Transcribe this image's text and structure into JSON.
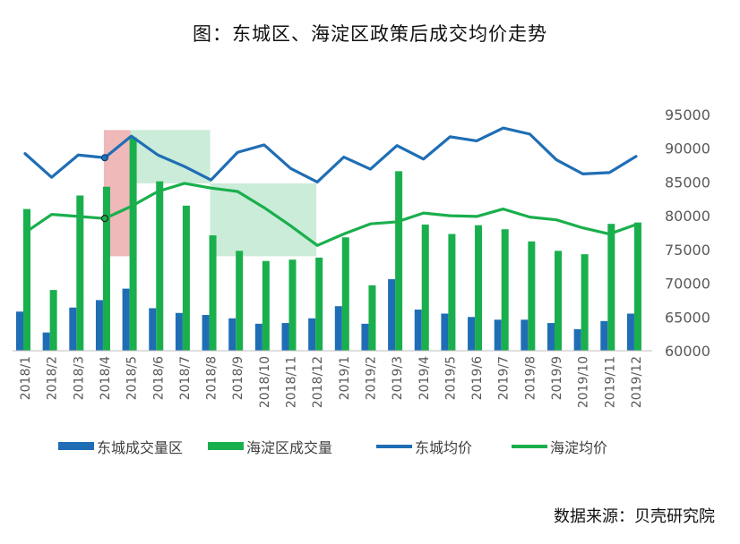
{
  "title": "图：东城区、海淀区政策后成交均价走势",
  "source": "数据来源：贝壳研究院",
  "chart_data": {
    "type": "bar",
    "categories": [
      "2018/1",
      "2018/2",
      "2018/3",
      "2018/4",
      "2018/5",
      "2018/6",
      "2018/7",
      "2018/8",
      "2018/9",
      "2018/10",
      "2018/11",
      "2018/12",
      "2019/1",
      "2019/2",
      "2019/3",
      "2019/4",
      "2019/5",
      "2019/6",
      "2019/7",
      "2019/8",
      "2019/9",
      "2019/10",
      "2019/11",
      "2019/12"
    ],
    "ylim": [
      60000,
      95000
    ],
    "yticks": [
      60000,
      65000,
      70000,
      75000,
      80000,
      85000,
      90000,
      95000
    ],
    "series": [
      {
        "name": "东城成交量区",
        "kind": "bar",
        "color": "#1F6EB5",
        "values": [
          65800,
          62700,
          66400,
          67500,
          69200,
          66300,
          65600,
          65300,
          64800,
          64000,
          64100,
          64800,
          66600,
          64000,
          70600,
          66100,
          65500,
          65000,
          64600,
          64600,
          64100,
          63200,
          64400,
          65500
        ]
      },
      {
        "name": "海淀区成交量",
        "kind": "bar",
        "color": "#1AAF4D",
        "values": [
          81000,
          69000,
          83000,
          84300,
          91600,
          85100,
          81500,
          77100,
          74800,
          73300,
          73500,
          73800,
          76800,
          69700,
          86600,
          78700,
          77300,
          78600,
          78000,
          76200,
          74800,
          74300,
          78800,
          79000
        ]
      },
      {
        "name": "东城均价",
        "kind": "line",
        "color": "#1F6EB5",
        "values": [
          89200,
          85700,
          89000,
          88600,
          91800,
          89000,
          87300,
          85300,
          89400,
          90500,
          87000,
          85000,
          88700,
          86900,
          90400,
          88400,
          91700,
          91100,
          93000,
          92100,
          88300,
          86200,
          86400,
          88800
        ]
      },
      {
        "name": "海淀均价",
        "kind": "line",
        "color": "#1AAF4D",
        "values": [
          77500,
          80200,
          79900,
          79600,
          81400,
          83600,
          84800,
          84100,
          83600,
          81200,
          78500,
          75600,
          77300,
          78800,
          79100,
          80400,
          80000,
          79900,
          81000,
          79800,
          79400,
          78200,
          77300,
          78700
        ]
      }
    ],
    "highlights": [
      {
        "color": "#E58A8A",
        "from": "2018/4",
        "to": "2018/5",
        "ymin": 74000,
        "ymax": 92700
      },
      {
        "color": "#A7E0BE",
        "from": "2018/5",
        "to": "2018/8",
        "ymin": 84800,
        "ymax": 92700
      },
      {
        "color": "#A7E0BE",
        "from": "2018/8",
        "to": "2018/12",
        "ymin": 74000,
        "ymax": 84800
      }
    ],
    "legend_position": "bottom",
    "grid": false
  }
}
